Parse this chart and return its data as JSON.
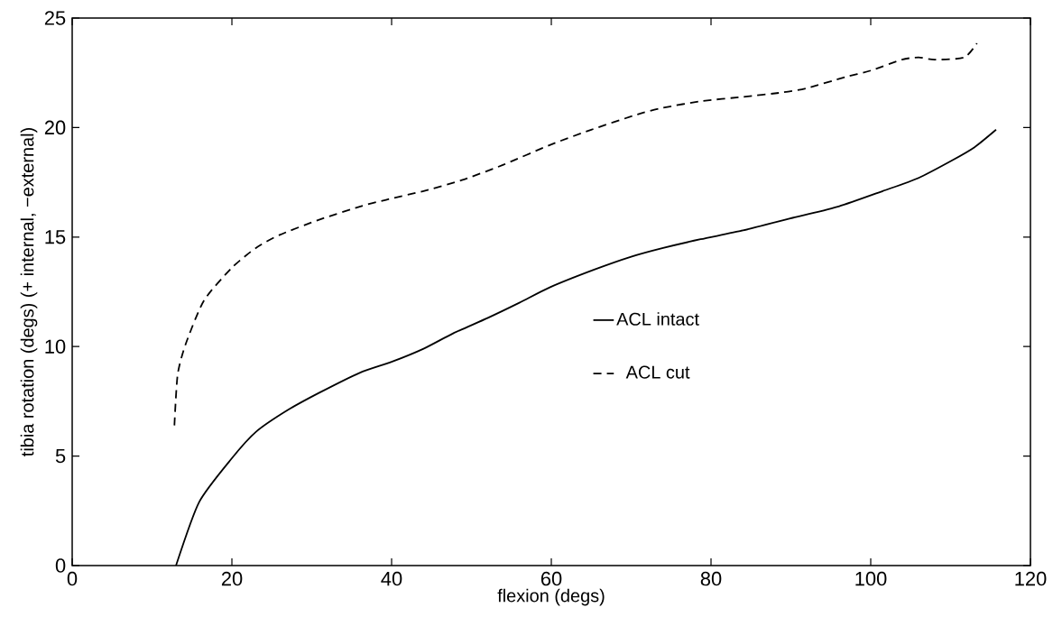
{
  "chart_data": {
    "type": "line",
    "xlabel": "flexion (degs)",
    "ylabel": "tibia rotation (degs) (+ internal, −external)",
    "xlim": [
      0,
      120
    ],
    "xticks": [
      0,
      20,
      40,
      60,
      80,
      100,
      120
    ],
    "ylim": [
      0,
      25
    ],
    "yticks": [
      0,
      5,
      10,
      15,
      20,
      25
    ],
    "grid": false,
    "legend": "right",
    "marker": "none",
    "series": [
      {
        "name": "ACL intact",
        "color": "#000000",
        "line_style": "solid",
        "x": [
          13,
          15.9,
          20,
          23,
          27,
          31,
          36,
          40,
          44,
          47.7,
          52,
          56,
          59.8,
          65.3,
          70,
          74,
          78.7,
          84,
          90.5,
          96,
          101.5,
          106,
          110.2,
          113,
          115.7
        ],
        "values": [
          0,
          2.9,
          4.9,
          6.1,
          7.1,
          7.9,
          8.8,
          9.3,
          9.9,
          10.6,
          11.3,
          12.0,
          12.7,
          13.5,
          14.1,
          14.5,
          14.9,
          15.3,
          15.9,
          16.4,
          17.1,
          17.7,
          18.5,
          19.1,
          19.9
        ]
      },
      {
        "name": "ACL cut",
        "color": "#000000",
        "line_style": "dashed",
        "x": [
          12.8,
          13.2,
          14.2,
          16.5,
          20,
          23,
          26,
          31,
          36.1,
          39.3,
          44,
          48.8,
          54,
          59.8,
          65,
          70.8,
          74,
          78.7,
          84,
          88.9,
          92,
          96.8,
          100,
          103.9,
          106,
          108,
          111.7,
          113.3
        ],
        "values": [
          6.4,
          8.7,
          10.1,
          12.1,
          13.6,
          14.5,
          15.1,
          15.8,
          16.4,
          16.7,
          17.1,
          17.6,
          18.3,
          19.2,
          19.9,
          20.6,
          20.9,
          21.2,
          21.4,
          21.6,
          21.8,
          22.3,
          22.6,
          23.1,
          23.2,
          23.1,
          23.2,
          23.85
        ]
      }
    ]
  }
}
